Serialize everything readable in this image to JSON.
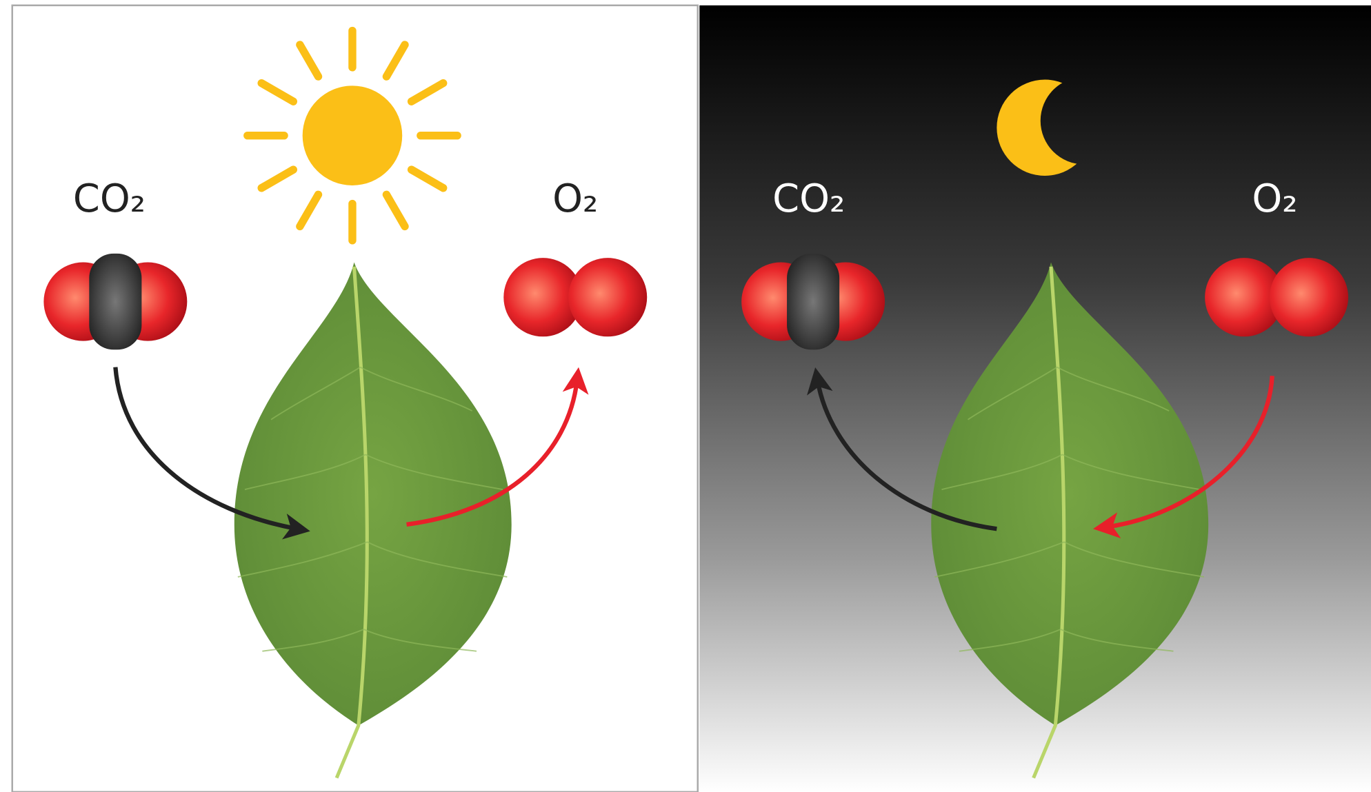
{
  "day": {
    "co2_label": "CO₂",
    "o2_label": "O₂"
  },
  "night": {
    "co2_label": "CO₂",
    "o2_label": "O₂"
  }
}
